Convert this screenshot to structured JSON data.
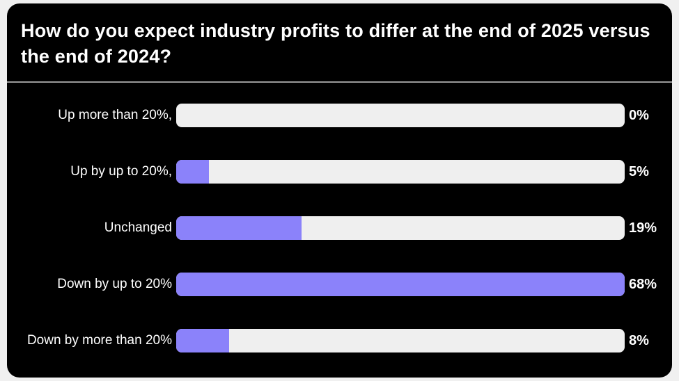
{
  "title": "How do you expect industry profits to differ at the end of 2025 versus the end of 2024?",
  "chart_data": {
    "type": "bar",
    "orientation": "horizontal",
    "title": "How do you expect industry profits to differ at the end of 2025 versus the end of 2024?",
    "categories": [
      "Up more than 20%,",
      "Up by up to 20%,",
      "Unchanged",
      "Down by up to 20%",
      "Down by more than 20%"
    ],
    "values": [
      0,
      5,
      19,
      68,
      8
    ],
    "value_labels": [
      "0%",
      "5%",
      "19%",
      "68%",
      "8%"
    ],
    "unit": "%",
    "bar_scale_max": 68,
    "legend": "none",
    "grid": "off",
    "colors": {
      "page_bg": "#F0F0F0",
      "card_bg": "#000000",
      "text": "#FFFFFF",
      "divider": "#9A9A9A",
      "bar_track": "#EFEFEF",
      "bar_fill": "#8B82FA"
    }
  }
}
